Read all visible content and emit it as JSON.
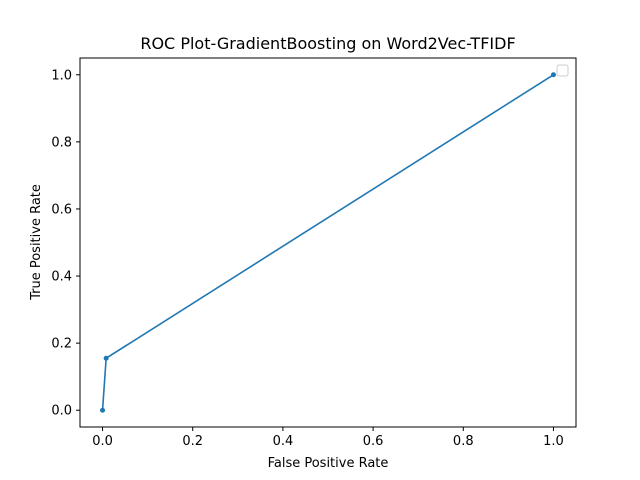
{
  "chart_data": {
    "type": "line",
    "title": "ROC Plot-GradientBoosting on Word2Vec-TFIDF",
    "xlabel": "False Positive Rate",
    "ylabel": "True Positive Rate",
    "xlim": [
      -0.05,
      1.05
    ],
    "ylim": [
      -0.05,
      1.05
    ],
    "xticks": [
      0.0,
      0.2,
      0.4,
      0.6,
      0.8,
      1.0
    ],
    "xtick_labels": [
      "0.0",
      "0.2",
      "0.4",
      "0.6",
      "0.8",
      "1.0"
    ],
    "yticks": [
      0.0,
      0.2,
      0.4,
      0.6,
      0.8,
      1.0
    ],
    "ytick_labels": [
      "0.0",
      "0.2",
      "0.4",
      "0.6",
      "0.8",
      "1.0"
    ],
    "grid": false,
    "legend": {
      "placement": "top-right",
      "entries": []
    },
    "series": [
      {
        "color": "#1f77b4",
        "marker": "dot",
        "x": [
          0.0,
          0.008,
          1.0
        ],
        "y": [
          0.0,
          0.155,
          1.0
        ]
      }
    ]
  }
}
